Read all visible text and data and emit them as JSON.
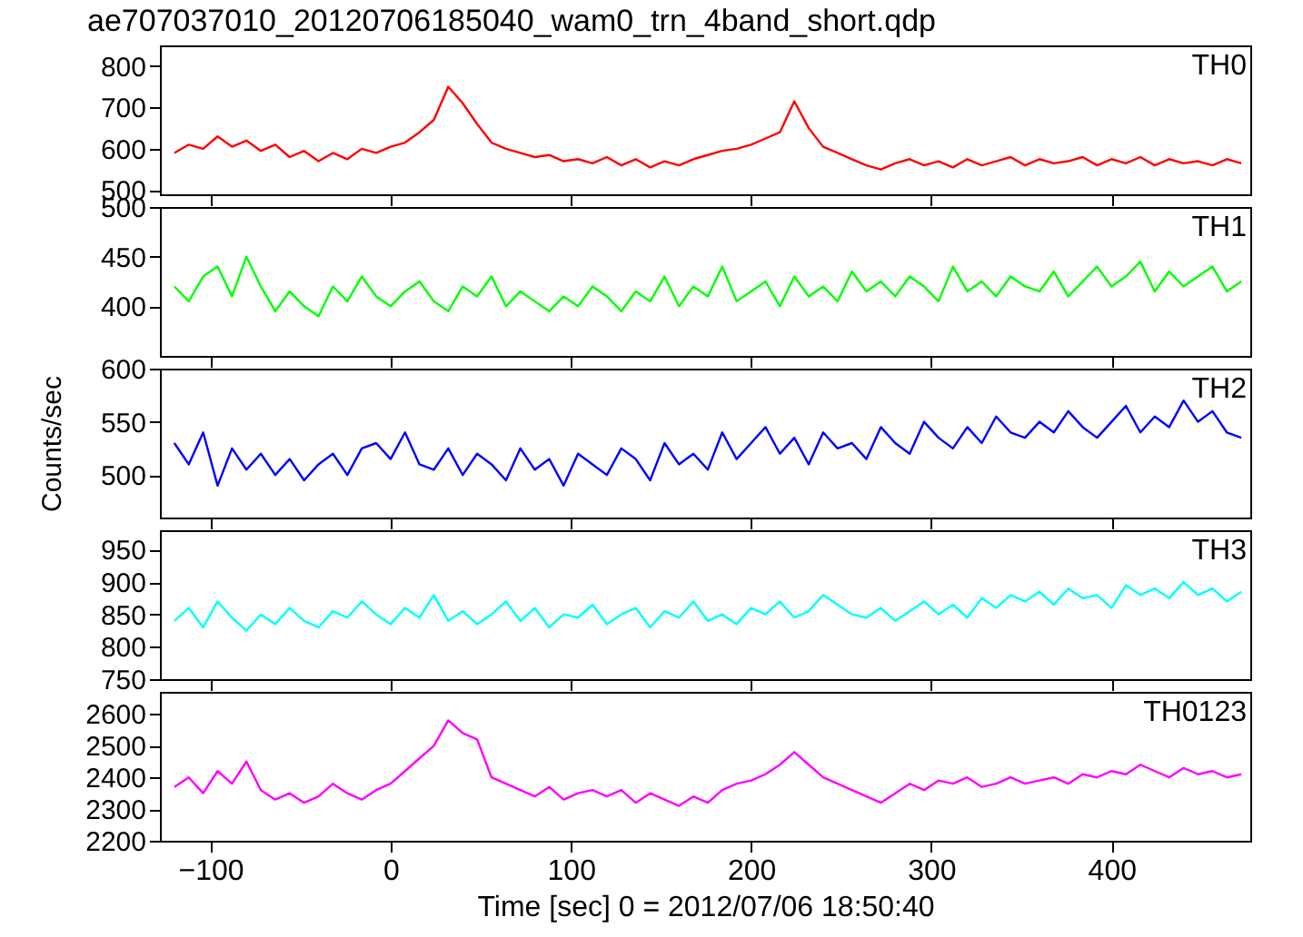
{
  "chart_data": [
    {
      "type": "line",
      "title": "ae707037010_20120706185040_wam0_trn_4band_short.qdp",
      "tick_labels": "y",
      "xlim": [
        -128,
        477
      ],
      "xticks": [
        -100,
        0,
        100,
        200,
        300,
        400
      ],
      "ylim": [
        490,
        850
      ],
      "yticks": [
        500,
        600,
        700,
        800
      ],
      "x": [
        -120,
        -112,
        -104,
        -96,
        -88,
        -80,
        -72,
        -64,
        -56,
        -48,
        -40,
        -32,
        -24,
        -16,
        -8,
        0,
        8,
        16,
        24,
        32,
        40,
        48,
        56,
        64,
        72,
        80,
        88,
        96,
        104,
        112,
        120,
        128,
        136,
        144,
        152,
        160,
        168,
        176,
        184,
        192,
        200,
        208,
        216,
        224,
        232,
        240,
        248,
        256,
        264,
        272,
        280,
        288,
        296,
        304,
        312,
        320,
        328,
        336,
        344,
        352,
        360,
        368,
        376,
        384,
        392,
        400,
        408,
        416,
        424,
        432,
        440,
        448,
        456,
        464,
        472
      ],
      "series": [
        {
          "name": "TH0",
          "color": "#ff0000",
          "values": [
            590,
            610,
            600,
            630,
            605,
            620,
            595,
            610,
            580,
            595,
            570,
            590,
            575,
            600,
            590,
            605,
            615,
            640,
            670,
            750,
            710,
            660,
            615,
            600,
            590,
            580,
            585,
            570,
            575,
            565,
            580,
            560,
            575,
            555,
            570,
            560,
            575,
            585,
            595,
            600,
            610,
            625,
            640,
            715,
            650,
            605,
            590,
            575,
            560,
            550,
            565,
            575,
            560,
            570,
            555,
            575,
            560,
            570,
            580,
            560,
            575,
            565,
            570,
            580,
            560,
            575,
            565,
            580,
            560,
            575,
            565,
            570,
            560,
            575,
            565
          ]
        }
      ]
    },
    {
      "type": "line",
      "tick_labels": "y",
      "xlim": [
        -128,
        477
      ],
      "xticks": [
        -100,
        0,
        100,
        200,
        300,
        400
      ],
      "ylim": [
        350,
        500
      ],
      "yticks": [
        400,
        450,
        500
      ],
      "x": [
        -120,
        -112,
        -104,
        -96,
        -88,
        -80,
        -72,
        -64,
        -56,
        -48,
        -40,
        -32,
        -24,
        -16,
        -8,
        0,
        8,
        16,
        24,
        32,
        40,
        48,
        56,
        64,
        72,
        80,
        88,
        96,
        104,
        112,
        120,
        128,
        136,
        144,
        152,
        160,
        168,
        176,
        184,
        192,
        200,
        208,
        216,
        224,
        232,
        240,
        248,
        256,
        264,
        272,
        280,
        288,
        296,
        304,
        312,
        320,
        328,
        336,
        344,
        352,
        360,
        368,
        376,
        384,
        392,
        400,
        408,
        416,
        424,
        432,
        440,
        448,
        456,
        464,
        472
      ],
      "series": [
        {
          "name": "TH1",
          "color": "#00ff00",
          "values": [
            420,
            405,
            430,
            440,
            410,
            450,
            420,
            395,
            415,
            400,
            390,
            420,
            405,
            430,
            410,
            400,
            415,
            425,
            405,
            395,
            420,
            410,
            430,
            400,
            415,
            405,
            395,
            410,
            400,
            420,
            410,
            395,
            415,
            405,
            430,
            400,
            420,
            410,
            440,
            405,
            415,
            425,
            400,
            430,
            410,
            420,
            405,
            435,
            415,
            425,
            410,
            430,
            420,
            405,
            440,
            415,
            425,
            410,
            430,
            420,
            415,
            435,
            410,
            425,
            440,
            420,
            430,
            445,
            415,
            435,
            420,
            430,
            440,
            415,
            425
          ]
        }
      ]
    },
    {
      "type": "line",
      "tick_labels": "y",
      "ylabel": "Counts/sec",
      "xlim": [
        -128,
        477
      ],
      "xticks": [
        -100,
        0,
        100,
        200,
        300,
        400
      ],
      "ylim": [
        460,
        600
      ],
      "yticks": [
        500,
        550,
        600
      ],
      "x": [
        -120,
        -112,
        -104,
        -96,
        -88,
        -80,
        -72,
        -64,
        -56,
        -48,
        -40,
        -32,
        -24,
        -16,
        -8,
        0,
        8,
        16,
        24,
        32,
        40,
        48,
        56,
        64,
        72,
        80,
        88,
        96,
        104,
        112,
        120,
        128,
        136,
        144,
        152,
        160,
        168,
        176,
        184,
        192,
        200,
        208,
        216,
        224,
        232,
        240,
        248,
        256,
        264,
        272,
        280,
        288,
        296,
        304,
        312,
        320,
        328,
        336,
        344,
        352,
        360,
        368,
        376,
        384,
        392,
        400,
        408,
        416,
        424,
        432,
        440,
        448,
        456,
        464,
        472
      ],
      "series": [
        {
          "name": "TH2",
          "color": "#0000ff",
          "values": [
            530,
            510,
            540,
            490,
            525,
            505,
            520,
            500,
            515,
            495,
            510,
            520,
            500,
            525,
            530,
            515,
            540,
            510,
            505,
            525,
            500,
            520,
            510,
            495,
            525,
            505,
            515,
            490,
            520,
            510,
            500,
            525,
            515,
            495,
            530,
            510,
            520,
            505,
            540,
            515,
            530,
            545,
            520,
            535,
            510,
            540,
            525,
            530,
            515,
            545,
            530,
            520,
            550,
            535,
            525,
            545,
            530,
            555,
            540,
            535,
            550,
            540,
            560,
            545,
            535,
            550,
            565,
            540,
            555,
            545,
            570,
            550,
            560,
            540,
            535
          ]
        }
      ]
    },
    {
      "type": "line",
      "tick_labels": "y",
      "xlim": [
        -128,
        477
      ],
      "xticks": [
        -100,
        0,
        100,
        200,
        300,
        400
      ],
      "ylim": [
        750,
        980
      ],
      "yticks": [
        750,
        800,
        850,
        900,
        950
      ],
      "x": [
        -120,
        -112,
        -104,
        -96,
        -88,
        -80,
        -72,
        -64,
        -56,
        -48,
        -40,
        -32,
        -24,
        -16,
        -8,
        0,
        8,
        16,
        24,
        32,
        40,
        48,
        56,
        64,
        72,
        80,
        88,
        96,
        104,
        112,
        120,
        128,
        136,
        144,
        152,
        160,
        168,
        176,
        184,
        192,
        200,
        208,
        216,
        224,
        232,
        240,
        248,
        256,
        264,
        272,
        280,
        288,
        296,
        304,
        312,
        320,
        328,
        336,
        344,
        352,
        360,
        368,
        376,
        384,
        392,
        400,
        408,
        416,
        424,
        432,
        440,
        448,
        456,
        464,
        472
      ],
      "series": [
        {
          "name": "TH3",
          "color": "#00ffff",
          "values": [
            840,
            860,
            830,
            870,
            845,
            825,
            850,
            835,
            860,
            840,
            830,
            855,
            845,
            870,
            850,
            835,
            860,
            845,
            880,
            840,
            855,
            835,
            850,
            870,
            840,
            860,
            830,
            850,
            845,
            865,
            835,
            850,
            860,
            830,
            855,
            845,
            870,
            840,
            850,
            835,
            860,
            850,
            870,
            845,
            855,
            880,
            865,
            850,
            845,
            860,
            840,
            855,
            870,
            850,
            865,
            845,
            875,
            860,
            880,
            870,
            885,
            865,
            890,
            875,
            880,
            860,
            895,
            880,
            890,
            875,
            900,
            880,
            890,
            870,
            885
          ]
        }
      ]
    },
    {
      "type": "line",
      "xlabel": "Time [sec] 0 = 2012/07/06 18:50:40",
      "xlim": [
        -128,
        477
      ],
      "xticks": [
        -100,
        0,
        100,
        200,
        300,
        400
      ],
      "ylim": [
        2200,
        2670
      ],
      "yticks": [
        2200,
        2300,
        2400,
        2500,
        2600
      ],
      "x": [
        -120,
        -112,
        -104,
        -96,
        -88,
        -80,
        -72,
        -64,
        -56,
        -48,
        -40,
        -32,
        -24,
        -16,
        -8,
        0,
        8,
        16,
        24,
        32,
        40,
        48,
        56,
        64,
        72,
        80,
        88,
        96,
        104,
        112,
        120,
        128,
        136,
        144,
        152,
        160,
        168,
        176,
        184,
        192,
        200,
        208,
        216,
        224,
        232,
        240,
        248,
        256,
        264,
        272,
        280,
        288,
        296,
        304,
        312,
        320,
        328,
        336,
        344,
        352,
        360,
        368,
        376,
        384,
        392,
        400,
        408,
        416,
        424,
        432,
        440,
        448,
        456,
        464,
        472
      ],
      "series": [
        {
          "name": "TH0123",
          "color": "#ff00ff",
          "values": [
            2370,
            2400,
            2350,
            2420,
            2380,
            2450,
            2360,
            2330,
            2350,
            2320,
            2340,
            2380,
            2350,
            2330,
            2360,
            2380,
            2420,
            2460,
            2500,
            2580,
            2540,
            2520,
            2400,
            2380,
            2360,
            2340,
            2370,
            2330,
            2350,
            2360,
            2340,
            2360,
            2320,
            2350,
            2330,
            2310,
            2340,
            2320,
            2360,
            2380,
            2390,
            2410,
            2440,
            2480,
            2440,
            2400,
            2380,
            2360,
            2340,
            2320,
            2350,
            2380,
            2360,
            2390,
            2380,
            2400,
            2370,
            2380,
            2400,
            2380,
            2390,
            2400,
            2380,
            2410,
            2400,
            2420,
            2410,
            2440,
            2420,
            2400,
            2430,
            2410,
            2420,
            2400,
            2410
          ]
        }
      ]
    }
  ]
}
